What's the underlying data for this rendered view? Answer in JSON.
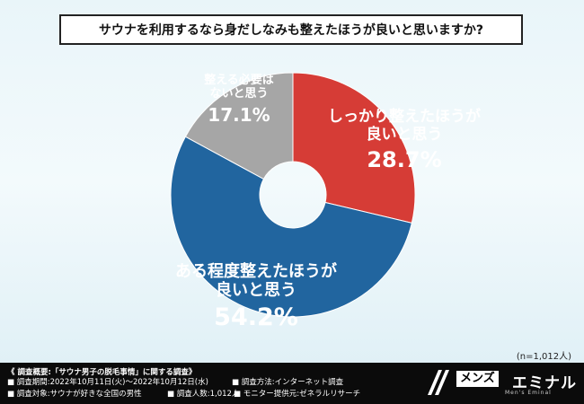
{
  "title": "サウナを利用するなら身だしなみも整えたほうが良いと思いますか?",
  "chart_data": {
    "type": "pie",
    "style": "donut",
    "start_angle_deg": 0,
    "direction": "clockwise",
    "series": [
      {
        "label_lines": [
          "しっかり整えたほうが",
          "良いと思う"
        ],
        "value": 28.7,
        "display": "28.7%",
        "color": "#d63c36"
      },
      {
        "label_lines": [
          "ある程度整えたほうが",
          "良いと思う"
        ],
        "value": 54.2,
        "display": "54.2%",
        "color": "#21659f"
      },
      {
        "label_lines": [
          "整える必要は",
          "ないと思う"
        ],
        "value": 17.1,
        "display": "17.1%",
        "color": "#a6a6a6"
      }
    ]
  },
  "labels": {
    "red": {
      "line1": "しっかり整えたほうが",
      "line2": "良いと思う",
      "pct": "28.7%"
    },
    "blue": {
      "line1": "ある程度整えたほうが",
      "line2": "良いと思う",
      "pct": "54.2%"
    },
    "gray": {
      "line1": "整える必要は",
      "line2": "ないと思う",
      "pct": "17.1%"
    }
  },
  "sample_note": "(n=1,012人)",
  "footer": {
    "heading": "《 調査概要:「サウナ男子の脱毛事情」に関する調査》",
    "period": "■ 調査期間:2022年10月11日(火)〜2022年10月12日(水)",
    "method": "■ 調査方法:インターネット調査",
    "target": "■ 調査対象:サウナが好きな全国の男性",
    "count": "■ 調査人数:1,012人",
    "provider": "■ モニター提供元:ゼネラルリサーチ"
  },
  "brand": {
    "mens": "メンズ",
    "name": "エミナル",
    "sub": "Men's Eminal"
  }
}
